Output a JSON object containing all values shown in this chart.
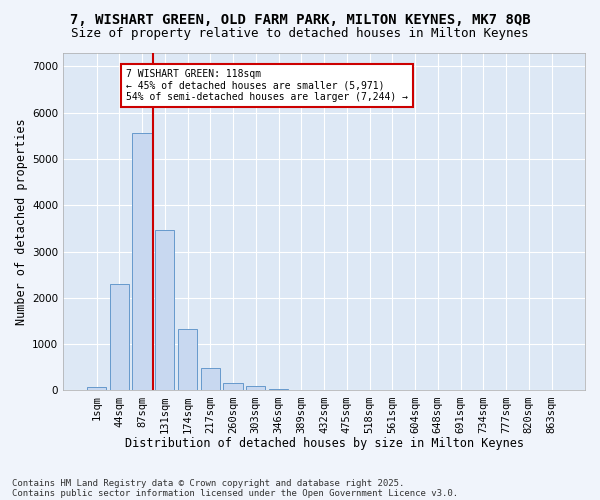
{
  "title1": "7, WISHART GREEN, OLD FARM PARK, MILTON KEYNES, MK7 8QB",
  "title2": "Size of property relative to detached houses in Milton Keynes",
  "xlabel": "Distribution of detached houses by size in Milton Keynes",
  "ylabel": "Number of detached properties",
  "bar_color": "#c8d8f0",
  "bar_edge_color": "#6699cc",
  "background_color": "#dde8f5",
  "fig_background_color": "#f0f4fb",
  "grid_color": "#ffffff",
  "categories": [
    "1sqm",
    "44sqm",
    "87sqm",
    "131sqm",
    "174sqm",
    "217sqm",
    "260sqm",
    "303sqm",
    "346sqm",
    "389sqm",
    "432sqm",
    "475sqm",
    "518sqm",
    "561sqm",
    "604sqm",
    "648sqm",
    "691sqm",
    "734sqm",
    "777sqm",
    "820sqm",
    "863sqm"
  ],
  "values": [
    80,
    2300,
    5570,
    3470,
    1320,
    480,
    170,
    90,
    40,
    5,
    3,
    2,
    1,
    0,
    0,
    0,
    0,
    0,
    0,
    0,
    0
  ],
  "ylim": [
    0,
    7300
  ],
  "yticks": [
    0,
    1000,
    2000,
    3000,
    4000,
    5000,
    6000,
    7000
  ],
  "vline_color": "#cc0000",
  "annotation_text": "7 WISHART GREEN: 118sqm\n← 45% of detached houses are smaller (5,971)\n54% of semi-detached houses are larger (7,244) →",
  "annotation_box_color": "#ffffff",
  "annotation_box_edge_color": "#cc0000",
  "footer1": "Contains HM Land Registry data © Crown copyright and database right 2025.",
  "footer2": "Contains public sector information licensed under the Open Government Licence v3.0.",
  "title1_fontsize": 10,
  "title2_fontsize": 9,
  "axis_fontsize": 8.5,
  "tick_fontsize": 7.5,
  "footer_fontsize": 6.5
}
